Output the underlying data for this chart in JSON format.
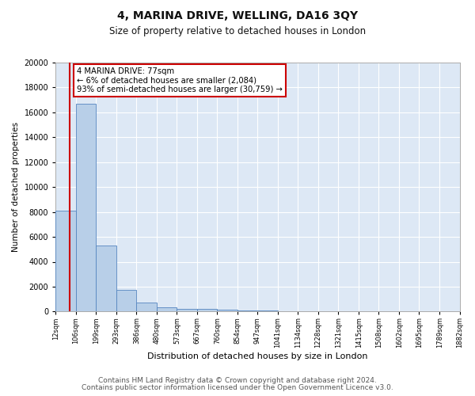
{
  "title": "4, MARINA DRIVE, WELLING, DA16 3QY",
  "subtitle": "Size of property relative to detached houses in London",
  "xlabel": "Distribution of detached houses by size in London",
  "ylabel": "Number of detached properties",
  "bar_values": [
    8100,
    16700,
    5300,
    1750,
    700,
    320,
    230,
    200,
    170,
    100,
    70,
    50,
    40,
    30,
    20,
    15,
    10,
    8,
    6,
    5
  ],
  "bin_edges": [
    12,
    106,
    199,
    293,
    386,
    480,
    573,
    667,
    760,
    854,
    947,
    1041,
    1134,
    1228,
    1321,
    1415,
    1508,
    1602,
    1695,
    1789,
    1882
  ],
  "tick_labels": [
    "12sqm",
    "106sqm",
    "199sqm",
    "293sqm",
    "386sqm",
    "480sqm",
    "573sqm",
    "667sqm",
    "760sqm",
    "854sqm",
    "947sqm",
    "1041sqm",
    "1134sqm",
    "1228sqm",
    "1321sqm",
    "1415sqm",
    "1508sqm",
    "1602sqm",
    "1695sqm",
    "1789sqm",
    "1882sqm"
  ],
  "bar_color": "#b8cfe8",
  "bar_edge_color": "#5585c0",
  "bg_color": "#dde8f5",
  "grid_color": "#ffffff",
  "vline_x": 77,
  "vline_color": "#cc0000",
  "annotation_text": "4 MARINA DRIVE: 77sqm\n← 6% of detached houses are smaller (2,084)\n93% of semi-detached houses are larger (30,759) →",
  "annotation_box_color": "#ffffff",
  "annotation_box_edge": "#cc0000",
  "ylim": [
    0,
    20000
  ],
  "yticks": [
    0,
    2000,
    4000,
    6000,
    8000,
    10000,
    12000,
    14000,
    16000,
    18000,
    20000
  ],
  "footer_line1": "Contains HM Land Registry data © Crown copyright and database right 2024.",
  "footer_line2": "Contains public sector information licensed under the Open Government Licence v3.0.",
  "title_fontsize": 10,
  "subtitle_fontsize": 8.5,
  "footer_fontsize": 6.5
}
